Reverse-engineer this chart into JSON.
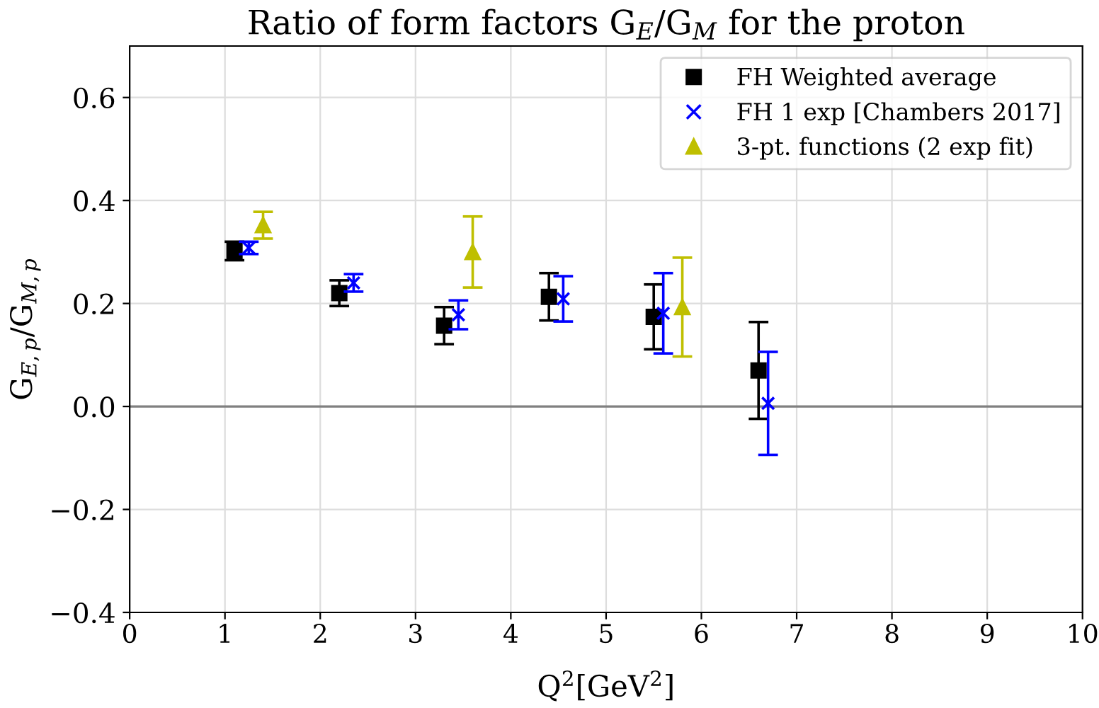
{
  "chart_data": {
    "type": "scatter",
    "title": "Ratio of form factors G$_{E}$/G$_{M}$ for the proton",
    "xlabel": "Q$^{2}$[GeV$^{2}$]",
    "ylabel": "G$_{E,p}$/G$_{M,p}$",
    "xlim": [
      0,
      10
    ],
    "ylim": [
      -0.4,
      0.7
    ],
    "xticks": [
      0,
      1,
      2,
      3,
      4,
      5,
      6,
      7,
      8,
      9,
      10
    ],
    "yticks": [
      -0.4,
      -0.2,
      {
        "value": 0,
        "label": "0.0"
      },
      0.2,
      0.4,
      0.6
    ],
    "grid": true,
    "legend": "top right",
    "ref_lines": [
      {
        "axis": "y",
        "value": 0,
        "color": "#808080"
      }
    ],
    "series": [
      {
        "name": "FH Weighted average",
        "color": "#000000",
        "marker": "square",
        "x": [
          1.1,
          2.2,
          3.3,
          4.4,
          5.5,
          6.6
        ],
        "values": [
          0.302,
          0.22,
          0.157,
          0.213,
          0.174,
          0.07
        ],
        "errors": [
          0.018,
          0.025,
          0.036,
          0.046,
          0.063,
          0.094
        ]
      },
      {
        "name": "FH 1 exp [Chambers 2017]",
        "color": "#0000ff",
        "marker": "cross",
        "x": [
          1.25,
          2.35,
          3.45,
          4.55,
          5.6,
          6.7
        ],
        "values": [
          0.308,
          0.24,
          0.178,
          0.209,
          0.181,
          0.006
        ],
        "errors": [
          0.012,
          0.017,
          0.028,
          0.044,
          0.078,
          0.1
        ]
      },
      {
        "name": "3-pt. functions (2 exp fit)",
        "color": "#bfbf00",
        "marker": "triangle",
        "x": [
          1.4,
          3.6,
          5.8
        ],
        "values": [
          0.352,
          0.3,
          0.193
        ],
        "errors": [
          0.026,
          0.069,
          0.096
        ]
      }
    ]
  }
}
